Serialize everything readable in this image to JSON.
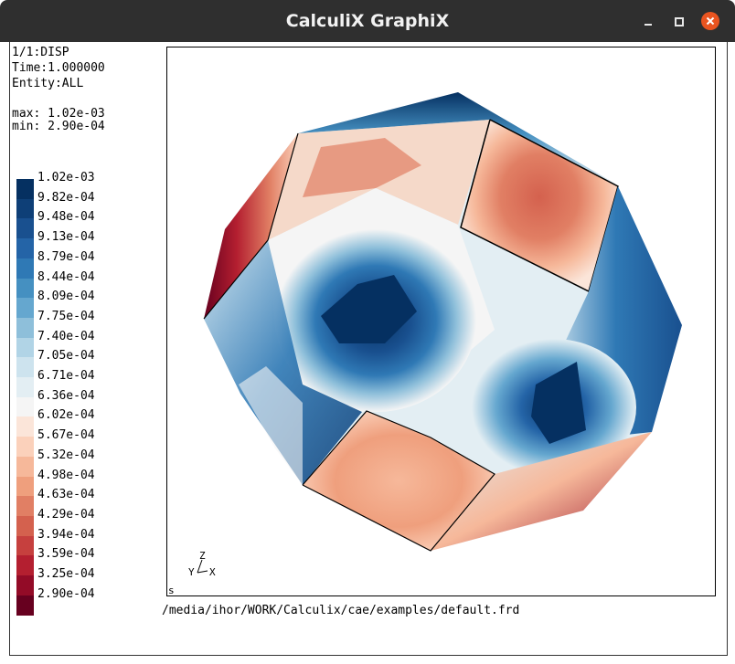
{
  "window": {
    "title": "CalculiX GraphiX",
    "buttons": {
      "minimize": "minimize",
      "maximize": "maximize",
      "close": "close"
    }
  },
  "info": {
    "dataset": "1/1:DISP",
    "time": "Time:1.000000",
    "entity": "Entity:ALL",
    "max": "max: 1.02e-03",
    "min": "min: 2.90e-04"
  },
  "legend": {
    "items": [
      {
        "label": "1.02e-03",
        "color": "#053061"
      },
      {
        "label": "9.82e-04",
        "color": "#0e3f77"
      },
      {
        "label": "9.48e-04",
        "color": "#19508f"
      },
      {
        "label": "9.13e-04",
        "color": "#2464a7"
      },
      {
        "label": "8.79e-04",
        "color": "#2f79b5"
      },
      {
        "label": "8.44e-04",
        "color": "#4590c1"
      },
      {
        "label": "8.09e-04",
        "color": "#65a7cf"
      },
      {
        "label": "7.75e-04",
        "color": "#8ebfda"
      },
      {
        "label": "7.40e-04",
        "color": "#b1d4e6"
      },
      {
        "label": "7.05e-04",
        "color": "#cde3ee"
      },
      {
        "label": "6.71e-04",
        "color": "#e3eef3"
      },
      {
        "label": "6.36e-04",
        "color": "#f5f5f5"
      },
      {
        "label": "6.02e-04",
        "color": "#fbe5d9"
      },
      {
        "label": "5.67e-04",
        "color": "#fbd1bb"
      },
      {
        "label": "5.32e-04",
        "color": "#f6b89a"
      },
      {
        "label": "4.98e-04",
        "color": "#ef9f7d"
      },
      {
        "label": "4.63e-04",
        "color": "#e17f64"
      },
      {
        "label": "4.29e-04",
        "color": "#d4614e"
      },
      {
        "label": "3.94e-04",
        "color": "#c6403e"
      },
      {
        "label": "3.59e-04",
        "color": "#b41f30"
      },
      {
        "label": "3.25e-04",
        "color": "#930b27"
      },
      {
        "label": "2.90e-04",
        "color": "#67001f"
      }
    ]
  },
  "axes": {
    "z": "Z",
    "y": "Y",
    "x": "X"
  },
  "view_mark": "s",
  "file_path": "/media/ihor/WORK/Calculix/cae/examples/default.frd"
}
